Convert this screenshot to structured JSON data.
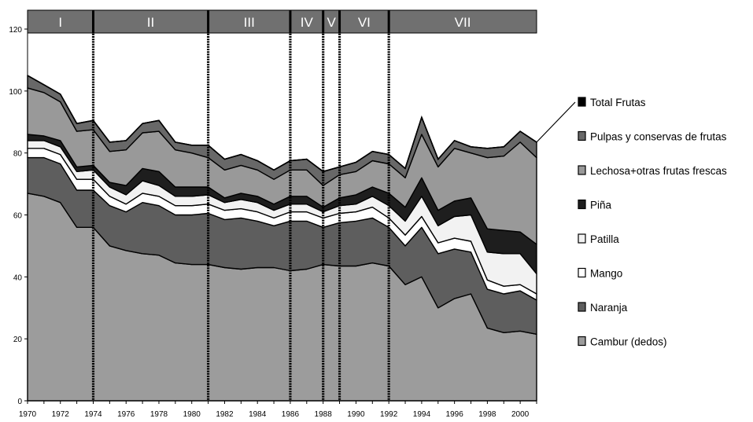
{
  "chart_data": {
    "type": "area",
    "stacked": true,
    "title": "",
    "xlabel": "",
    "ylabel": "",
    "ylim": [
      0,
      120
    ],
    "xlim": [
      1970,
      2001
    ],
    "y_ticks": [
      0,
      20,
      40,
      60,
      80,
      100,
      120
    ],
    "x_ticks": [
      1970,
      1972,
      1974,
      1976,
      1978,
      1980,
      1982,
      1984,
      1986,
      1988,
      1990,
      1992,
      1994,
      1996,
      1998,
      2000
    ],
    "grid": false,
    "legend_position": "right",
    "x": [
      1970,
      1971,
      1972,
      1973,
      1974,
      1975,
      1976,
      1977,
      1978,
      1979,
      1980,
      1981,
      1982,
      1983,
      1984,
      1985,
      1986,
      1987,
      1988,
      1989,
      1990,
      1991,
      1992,
      1993,
      1994,
      1995,
      1996,
      1997,
      1998,
      1999,
      2000,
      2001
    ],
    "series": [
      {
        "name": "Cambur (dedos)",
        "color": "#9c9c9c",
        "values": [
          67,
          66,
          64,
          56,
          56,
          50,
          48.5,
          47.5,
          47,
          44.5,
          44,
          44,
          43,
          42.5,
          43,
          43,
          42,
          42.5,
          44,
          43.5,
          43.5,
          44.5,
          43.5,
          37.5,
          40,
          30,
          33,
          34.5,
          23.5,
          22,
          22.5,
          21.5
        ]
      },
      {
        "name": "Naranja",
        "color": "#5e5e5e",
        "values": [
          11.5,
          12.5,
          12.5,
          12,
          12,
          13,
          12.5,
          16.5,
          16,
          15.5,
          16,
          16.5,
          15.5,
          16.5,
          15,
          13.5,
          16,
          15.5,
          12,
          14,
          14.5,
          14.5,
          12.5,
          12.5,
          16,
          17.5,
          16,
          13.5,
          12.5,
          12.5,
          13,
          11
        ]
      },
      {
        "name": "Mango",
        "color": "#ffffff",
        "values": [
          3,
          3,
          3,
          3.5,
          3.5,
          3,
          2.5,
          3,
          3,
          3,
          3,
          3,
          3,
          3,
          3,
          2.5,
          3,
          3,
          3,
          3,
          3,
          3.5,
          3,
          3.5,
          3.5,
          3.5,
          3.5,
          3.5,
          3,
          2.5,
          2,
          2
        ]
      },
      {
        "name": "Patilla",
        "color": "#f2f2f2",
        "values": [
          2.5,
          2.5,
          2.5,
          2.5,
          3,
          3,
          3,
          4,
          3.5,
          3,
          3,
          3,
          2.5,
          3,
          3,
          2.5,
          2.5,
          2.5,
          2,
          2.5,
          2.5,
          3.5,
          4,
          4.5,
          6.5,
          5.5,
          7,
          8.5,
          9,
          10.5,
          10,
          6.5
        ]
      },
      {
        "name": "Piña",
        "color": "#1e1e1e",
        "values": [
          2,
          1.5,
          2,
          1.5,
          1.5,
          1.5,
          3,
          4,
          4.5,
          3,
          3,
          2.5,
          1.5,
          2,
          2,
          2,
          2.5,
          2.5,
          1.5,
          2.5,
          3,
          3,
          4,
          4.5,
          6,
          5,
          5,
          5.5,
          7.5,
          7.5,
          7,
          9.5
        ]
      },
      {
        "name": "Lechosa+otras frutas frescas",
        "color": "#999999",
        "values": [
          15,
          14,
          12.5,
          11.5,
          11.5,
          10,
          11.5,
          11.5,
          13,
          12,
          11,
          9.5,
          9,
          9,
          8.5,
          8,
          8.5,
          8.5,
          7,
          7.5,
          7.5,
          8.5,
          9.5,
          9.5,
          14,
          14,
          17,
          14.5,
          23,
          24,
          29,
          28
        ]
      },
      {
        "name": "Pulpas y conservas de frutas",
        "color": "#686868",
        "values": [
          4,
          2.5,
          2.5,
          2.5,
          3,
          3,
          3,
          3,
          3.5,
          2.5,
          2.5,
          4,
          3.5,
          3.5,
          3,
          3,
          3,
          3.5,
          4.5,
          2.5,
          3,
          3,
          3,
          3,
          5.5,
          2.5,
          2.5,
          2,
          3,
          3,
          3.5,
          5
        ]
      },
      {
        "name": "Total Frutas",
        "color": "#000000",
        "values": [
          0,
          0,
          0,
          0,
          0,
          0,
          0,
          0,
          0,
          0,
          0,
          0,
          0,
          0,
          0,
          0,
          0,
          0,
          0,
          0,
          0,
          0,
          0,
          0,
          0,
          0,
          0,
          0,
          0,
          0,
          0,
          0
        ]
      }
    ],
    "legend_entries": [
      "Total Frutas",
      "Pulpas y conservas de frutas",
      "Lechosa+otras frutas frescas",
      "Piña",
      "Patilla",
      "Mango",
      "Naranja",
      "Cambur (dedos)"
    ],
    "periods": [
      {
        "label": "I",
        "start": 1970,
        "end": 1974
      },
      {
        "label": "II",
        "start": 1974,
        "end": 1981
      },
      {
        "label": "III",
        "start": 1981,
        "end": 1986
      },
      {
        "label": "IV",
        "start": 1986,
        "end": 1988
      },
      {
        "label": "V",
        "start": 1988,
        "end": 1989
      },
      {
        "label": "VI",
        "start": 1989,
        "end": 1992
      },
      {
        "label": "VII",
        "start": 1992,
        "end": 2001
      }
    ],
    "period_band_color": "#707070",
    "background_color": "#ffffff"
  }
}
